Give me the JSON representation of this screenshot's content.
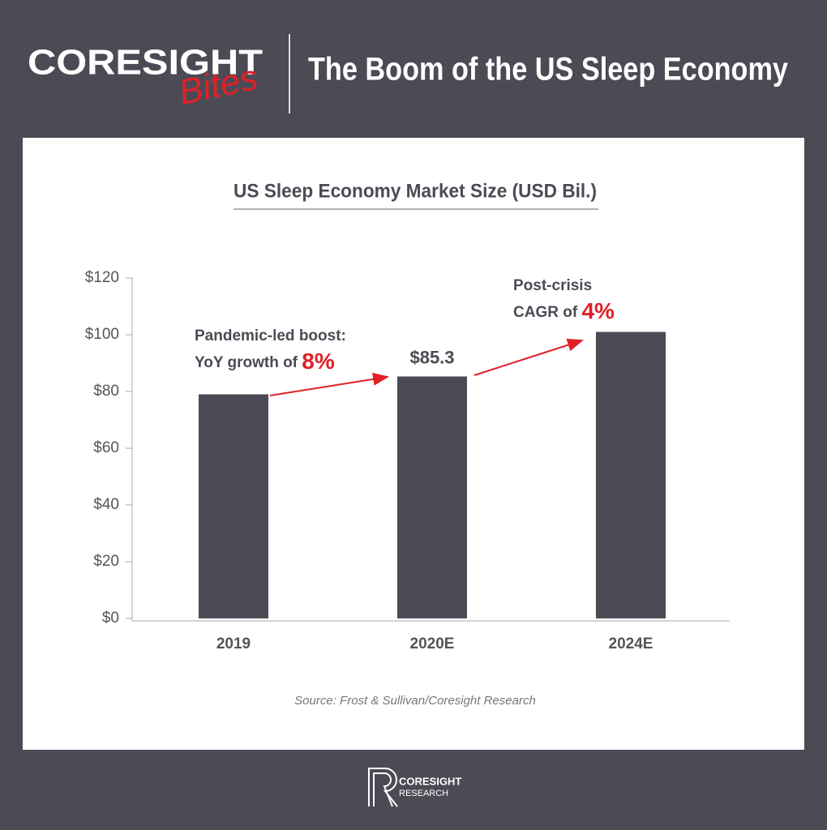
{
  "header": {
    "brand": "CORESIGHT",
    "brand_sub": "Bites",
    "title": "The Boom of the US Sleep Economy"
  },
  "chart_data": {
    "type": "bar",
    "title": "US Sleep Economy Market Size (USD Bil.)",
    "categories": [
      "2019",
      "2020E",
      "2024E"
    ],
    "values": [
      79,
      85.3,
      101
    ],
    "value_labels": [
      null,
      "$85.3",
      null
    ],
    "color": "#4b4b55",
    "ylim": [
      0,
      120
    ],
    "yticks": [
      {
        "value": 0,
        "label": "$0"
      },
      {
        "value": 20,
        "label": "$20"
      },
      {
        "value": 40,
        "label": "$40"
      },
      {
        "value": 60,
        "label": "$60"
      },
      {
        "value": 80,
        "label": "$80"
      },
      {
        "value": 100,
        "label": "$100"
      },
      {
        "value": 120,
        "label": "$120"
      }
    ],
    "grid": false,
    "annotations": [
      {
        "lines": [
          "Pandemic-led boost:",
          "YoY growth of "
        ],
        "highlight": "8%"
      },
      {
        "lines": [
          "Post-crisis",
          "CAGR of "
        ],
        "highlight": "4%"
      }
    ],
    "source": "Source: Frost & Sullivan/Coresight Research"
  },
  "footer": {
    "logo_line1": "CORESIGHT",
    "logo_line2": "RESEARCH"
  }
}
